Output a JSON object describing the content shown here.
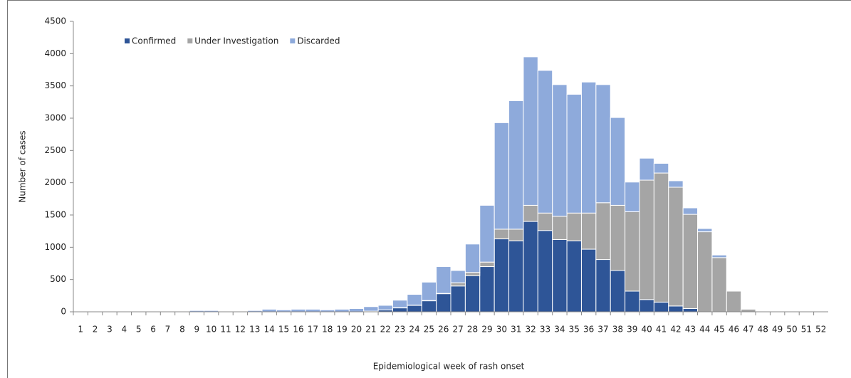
{
  "chart_data": {
    "type": "stacked-bar",
    "x_label": "Epidemiological week of rash onset",
    "y_label": "Number of cases",
    "categories": [
      "1",
      "2",
      "3",
      "4",
      "5",
      "6",
      "7",
      "8",
      "9",
      "10",
      "11",
      "12",
      "13",
      "14",
      "15",
      "16",
      "17",
      "18",
      "19",
      "20",
      "21",
      "22",
      "23",
      "24",
      "25",
      "26",
      "27",
      "28",
      "29",
      "30",
      "31",
      "32",
      "33",
      "34",
      "35",
      "36",
      "37",
      "38",
      "39",
      "40",
      "41",
      "42",
      "43",
      "44",
      "45",
      "46",
      "47",
      "48",
      "49",
      "50",
      "51",
      "52"
    ],
    "series": [
      {
        "name": "Confirmed",
        "color": "#2e5597",
        "values": [
          0,
          0,
          0,
          0,
          0,
          0,
          0,
          0,
          0,
          0,
          0,
          0,
          0,
          0,
          0,
          0,
          0,
          0,
          0,
          0,
          10,
          30,
          60,
          100,
          170,
          280,
          400,
          560,
          700,
          1130,
          1100,
          1400,
          1260,
          1120,
          1100,
          970,
          810,
          640,
          320,
          190,
          150,
          90,
          50,
          0,
          0,
          0,
          0,
          0,
          0,
          0,
          0,
          0
        ]
      },
      {
        "name": "Under Investigation",
        "color": "#a5a5a5",
        "values": [
          0,
          0,
          0,
          0,
          0,
          0,
          0,
          0,
          0,
          0,
          0,
          0,
          0,
          0,
          0,
          0,
          0,
          0,
          0,
          0,
          0,
          0,
          5,
          5,
          5,
          5,
          50,
          50,
          70,
          150,
          180,
          250,
          270,
          360,
          430,
          560,
          880,
          1010,
          1230,
          1850,
          2000,
          1840,
          1460,
          1240,
          840,
          320,
          40,
          0,
          0,
          0,
          0,
          0
        ]
      },
      {
        "name": "Discarded",
        "color": "#8eaadb",
        "values": [
          0,
          0,
          0,
          0,
          0,
          0,
          0,
          0,
          20,
          20,
          10,
          5,
          20,
          40,
          30,
          40,
          40,
          30,
          40,
          50,
          70,
          70,
          115,
          165,
          285,
          415,
          190,
          440,
          880,
          1650,
          1990,
          2300,
          2210,
          2040,
          1840,
          2030,
          1830,
          1360,
          460,
          340,
          150,
          100,
          100,
          50,
          40,
          0,
          0,
          0,
          0,
          0,
          0,
          0
        ]
      }
    ],
    "ylim": [
      0,
      4500
    ],
    "yticks": [
      0,
      500,
      1000,
      1500,
      2000,
      2500,
      3000,
      3500,
      4000,
      4500
    ],
    "legend": "top-left"
  }
}
